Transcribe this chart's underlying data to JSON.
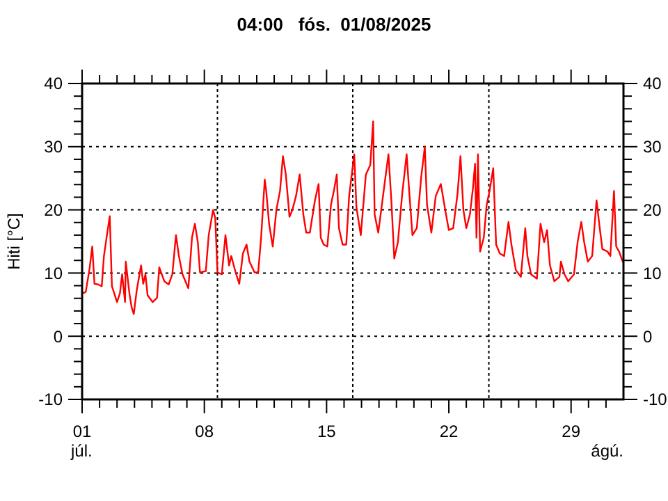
{
  "chart_data": {
    "type": "line",
    "title": "04:00   fós.  01/08/2025",
    "ylabel": "Hiti [°C]",
    "annotations": [
      "júl.",
      "ágú."
    ],
    "xlim": [
      "2025-07-01T00:00",
      "2025-08-01T00:00"
    ],
    "xticks": [
      {
        "value": "2025-07-01",
        "label": "01"
      },
      {
        "value": "2025-07-02",
        "label": null
      },
      {
        "value": "2025-07-03",
        "label": null
      },
      {
        "value": "2025-07-04",
        "label": null
      },
      {
        "value": "2025-07-05",
        "label": null
      },
      {
        "value": "2025-07-06",
        "label": null
      },
      {
        "value": "2025-07-07",
        "label": null
      },
      {
        "value": "2025-07-08",
        "label": "08"
      },
      {
        "value": "2025-07-09",
        "label": null
      },
      {
        "value": "2025-07-10",
        "label": null
      },
      {
        "value": "2025-07-11",
        "label": null
      },
      {
        "value": "2025-07-12",
        "label": null
      },
      {
        "value": "2025-07-13",
        "label": null
      },
      {
        "value": "2025-07-14",
        "label": null
      },
      {
        "value": "2025-07-15",
        "label": "15"
      },
      {
        "value": "2025-07-16",
        "label": null
      },
      {
        "value": "2025-07-17",
        "label": null
      },
      {
        "value": "2025-07-18",
        "label": null
      },
      {
        "value": "2025-07-19",
        "label": null
      },
      {
        "value": "2025-07-20",
        "label": null
      },
      {
        "value": "2025-07-21",
        "label": null
      },
      {
        "value": "2025-07-22",
        "label": "22"
      },
      {
        "value": "2025-07-23",
        "label": null
      },
      {
        "value": "2025-07-24",
        "label": null
      },
      {
        "value": "2025-07-25",
        "label": null
      },
      {
        "value": "2025-07-26",
        "label": null
      },
      {
        "value": "2025-07-27",
        "label": null
      },
      {
        "value": "2025-07-28",
        "label": null
      },
      {
        "value": "2025-07-29",
        "label": "29"
      },
      {
        "value": "2025-07-30",
        "label": null
      },
      {
        "value": "2025-07-31",
        "label": null
      }
    ],
    "ylim": [
      -10,
      40
    ],
    "yticks": [
      -10,
      {
        "value": -8,
        "label": null
      },
      {
        "value": -6,
        "label": null
      },
      {
        "value": -4,
        "label": null
      },
      {
        "value": -2,
        "label": null
      },
      0,
      {
        "value": 2,
        "label": null
      },
      {
        "value": 4,
        "label": null
      },
      {
        "value": 6,
        "label": null
      },
      {
        "value": 8,
        "label": null
      },
      10,
      {
        "value": 12,
        "label": null
      },
      {
        "value": 14,
        "label": null
      },
      {
        "value": 16,
        "label": null
      },
      {
        "value": 18,
        "label": null
      },
      20,
      {
        "value": 22,
        "label": null
      },
      {
        "value": 24,
        "label": null
      },
      {
        "value": 26,
        "label": null
      },
      {
        "value": 28,
        "label": null
      },
      30,
      {
        "value": 32,
        "label": null
      },
      {
        "value": 34,
        "label": null
      },
      {
        "value": 36,
        "label": null
      },
      {
        "value": 38,
        "label": null
      },
      40
    ],
    "y2lim": [
      -10,
      40
    ],
    "y2ticks": [
      -10,
      {
        "value": -8,
        "label": null
      },
      {
        "value": -6,
        "label": null
      },
      {
        "value": -4,
        "label": null
      },
      {
        "value": -2,
        "label": null
      },
      0,
      {
        "value": 2,
        "label": null
      },
      {
        "value": 4,
        "label": null
      },
      {
        "value": 6,
        "label": null
      },
      {
        "value": 8,
        "label": null
      },
      10,
      {
        "value": 12,
        "label": null
      },
      {
        "value": 14,
        "label": null
      },
      {
        "value": 16,
        "label": null
      },
      {
        "value": 18,
        "label": null
      },
      20,
      {
        "value": 22,
        "label": null
      },
      {
        "value": 24,
        "label": null
      },
      {
        "value": 26,
        "label": null
      },
      {
        "value": 28,
        "label": null
      },
      30,
      {
        "value": 32,
        "label": null
      },
      {
        "value": 34,
        "label": null
      },
      {
        "value": 36,
        "label": null
      },
      {
        "value": 38,
        "label": null
      },
      40
    ],
    "grid": "y",
    "line_style": "solid",
    "ref_lines": [
      {
        "axis": "x",
        "value": "2025-07-08T18:00",
        "line_style": "dotted"
      },
      {
        "axis": "x",
        "value": "2025-07-16T12:00",
        "line_style": "dotted"
      },
      {
        "axis": "x",
        "value": "2025-07-24T07:00",
        "line_style": "dotted"
      }
    ],
    "x": [
      "2025-07-01T01:00",
      "2025-07-01T05:00",
      "2025-07-01T10:00",
      "2025-07-01T14:00",
      "2025-07-01T17:00",
      "2025-07-01T22:00",
      "2025-07-02T03:00",
      "2025-07-02T06:00",
      "2025-07-02T11:00",
      "2025-07-02T14:00",
      "2025-07-02T17:00",
      "2025-07-03T00:00",
      "2025-07-03T04:00",
      "2025-07-03T07:00",
      "2025-07-03T11:00",
      "2025-07-03T12:00",
      "2025-07-03T17:00",
      "2025-07-03T20:00",
      "2025-07-03T23:00",
      "2025-07-04T03:00",
      "2025-07-04T09:00",
      "2025-07-04T12:00",
      "2025-07-04T15:00",
      "2025-07-04T18:00",
      "2025-07-05T01:00",
      "2025-07-05T07:00",
      "2025-07-05T10:00",
      "2025-07-05T17:00",
      "2025-07-05T23:00",
      "2025-07-06T04:00",
      "2025-07-06T09:00",
      "2025-07-06T13:00",
      "2025-07-06T18:00",
      "2025-07-07T02:00",
      "2025-07-07T07:00",
      "2025-07-07T11:00",
      "2025-07-07T15:00",
      "2025-07-07T18:00",
      "2025-07-08T02:00",
      "2025-07-08T06:00",
      "2025-07-08T12:00",
      "2025-07-08T15:00",
      "2025-07-08T18:00",
      "2025-07-09T00:00",
      "2025-07-09T05:00",
      "2025-07-09T10:00",
      "2025-07-09T13:00",
      "2025-07-09T19:00",
      "2025-07-10T00:00",
      "2025-07-10T05:00",
      "2025-07-10T10:00",
      "2025-07-10T14:00",
      "2025-07-10T21:00",
      "2025-07-11T02:00",
      "2025-07-11T06:00",
      "2025-07-11T11:00",
      "2025-07-11T13:00",
      "2025-07-11T17:00",
      "2025-07-11T22:00",
      "2025-07-12T03:00",
      "2025-07-12T08:00",
      "2025-07-12T12:00",
      "2025-07-12T16:00",
      "2025-07-12T21:00",
      "2025-07-13T01:00",
      "2025-07-13T06:00",
      "2025-07-13T11:00",
      "2025-07-13T16:00",
      "2025-07-13T20:00",
      "2025-07-14T01:00",
      "2025-07-14T08:00",
      "2025-07-14T13:00",
      "2025-07-14T16:00",
      "2025-07-14T20:00",
      "2025-07-15T01:00",
      "2025-07-15T06:00",
      "2025-07-15T10:00",
      "2025-07-15T14:00",
      "2025-07-15T17:00",
      "2025-07-15T22:00",
      "2025-07-16T03:00",
      "2025-07-16T07:00",
      "2025-07-16T14:00",
      "2025-07-16T17:00",
      "2025-07-16T23:00",
      "2025-07-17T06:00",
      "2025-07-17T12:00",
      "2025-07-17T16:00",
      "2025-07-17T18:00",
      "2025-07-17T23:00",
      "2025-07-18T06:00",
      "2025-07-18T13:00",
      "2025-07-18T17:00",
      "2025-07-18T21:00",
      "2025-07-19T02:00",
      "2025-07-19T08:00",
      "2025-07-19T14:00",
      "2025-07-19T18:00",
      "2025-07-19T22:00",
      "2025-07-20T04:00",
      "2025-07-20T10:00",
      "2025-07-20T15:00",
      "2025-07-20T18:00",
      "2025-07-21T00:00",
      "2025-07-21T06:00",
      "2025-07-21T13:00",
      "2025-07-21T19:00",
      "2025-07-22T00:00",
      "2025-07-22T06:00",
      "2025-07-22T12:00",
      "2025-07-22T16:00",
      "2025-07-22T20:00",
      "2025-07-23T00:00",
      "2025-07-23T05:00",
      "2025-07-23T09:00",
      "2025-07-23T12:00",
      "2025-07-23T14:00",
      "2025-07-23T16:00",
      "2025-07-23T19:00",
      "2025-07-24T00:00",
      "2025-07-24T04:00",
      "2025-07-24T08:00",
      "2025-07-24T13:00",
      "2025-07-24T17:00",
      "2025-07-24T22:00",
      "2025-07-25T04:00",
      "2025-07-25T10:00",
      "2025-07-25T14:00",
      "2025-07-25T20:00",
      "2025-07-26T03:00",
      "2025-07-26T09:00",
      "2025-07-26T12:00",
      "2025-07-26T17:00",
      "2025-07-27T01:00",
      "2025-07-27T06:00",
      "2025-07-27T11:00",
      "2025-07-27T15:00",
      "2025-07-27T19:00",
      "2025-07-28T01:00",
      "2025-07-28T08:00",
      "2025-07-28T10:00",
      "2025-07-28T15:00",
      "2025-07-28T20:00",
      "2025-07-29T04:00",
      "2025-07-29T09:00",
      "2025-07-29T14:00",
      "2025-07-29T18:00",
      "2025-07-29T23:00",
      "2025-07-30T05:00",
      "2025-07-30T11:00",
      "2025-07-30T15:00",
      "2025-07-30T19:00",
      "2025-07-31T02:00",
      "2025-07-31T06:00",
      "2025-07-31T11:00",
      "2025-07-31T14:00",
      "2025-07-31T18:00",
      "2025-07-31T23:00"
    ],
    "series": [
      {
        "color": "#ff0000",
        "values": [
          6.8,
          7.0,
          10.5,
          14.2,
          8.3,
          8.2,
          7.9,
          12.7,
          16.7,
          19.0,
          7.9,
          5.4,
          6.8,
          9.8,
          5.4,
          11.8,
          6.8,
          4.6,
          3.5,
          7.2,
          11.2,
          8.3,
          9.8,
          6.5,
          5.4,
          6.1,
          10.9,
          8.7,
          8.2,
          9.8,
          16.0,
          12.7,
          9.8,
          7.6,
          15.6,
          17.8,
          14.9,
          10.1,
          10.3,
          16.0,
          20.0,
          18.7,
          10.1,
          9.8,
          16.0,
          11.2,
          12.7,
          10.1,
          8.3,
          13.1,
          14.5,
          11.8,
          10.1,
          10.1,
          15.6,
          24.8,
          23.0,
          17.8,
          14.2,
          20.0,
          23.0,
          28.5,
          25.6,
          18.9,
          20.0,
          22.2,
          25.6,
          19.3,
          16.4,
          16.4,
          21.5,
          24.1,
          15.6,
          14.5,
          14.2,
          20.8,
          23.0,
          25.6,
          17.1,
          14.5,
          14.5,
          22.2,
          28.8,
          20.4,
          16.0,
          25.6,
          27.1,
          34.0,
          19.3,
          16.4,
          22.6,
          28.8,
          21.5,
          12.3,
          14.9,
          22.6,
          28.8,
          22.2,
          16.0,
          17.1,
          25.2,
          30.0,
          20.8,
          16.4,
          22.2,
          24.1,
          20.0,
          16.8,
          17.1,
          22.6,
          28.5,
          20.0,
          17.1,
          19.3,
          23.3,
          27.3,
          15.6,
          28.8,
          13.4,
          15.6,
          20.8,
          23.0,
          26.6,
          14.5,
          13.1,
          12.7,
          18.1,
          14.5,
          10.5,
          9.4,
          17.1,
          12.7,
          9.8,
          9.1,
          17.8,
          14.9,
          16.8,
          11.2,
          8.7,
          9.4,
          11.8,
          9.8,
          8.7,
          9.8,
          14.9,
          18.1,
          14.9,
          11.8,
          12.7,
          21.5,
          17.5,
          13.8,
          13.4,
          12.7,
          23.0,
          14.2,
          13.4,
          11.8
        ]
      }
    ]
  }
}
